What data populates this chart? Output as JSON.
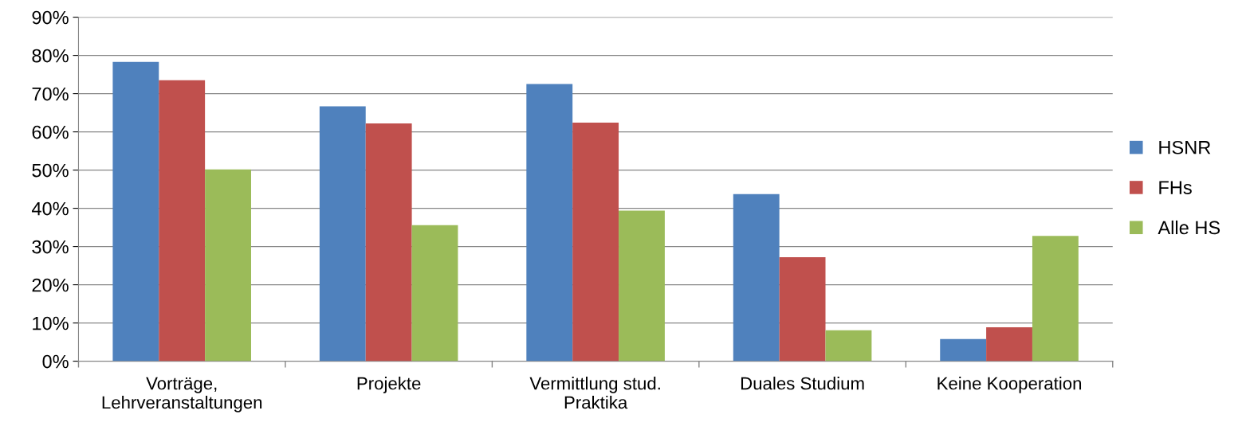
{
  "chart_data": {
    "type": "bar",
    "categories": [
      "Vorträge,\nLehrveranstaltungen",
      "Projekte",
      "Vermittlung stud.\nPraktika",
      "Duales Studium",
      "Keine Kooperation"
    ],
    "series": [
      {
        "name": "HSNR",
        "color": "#4f81bd",
        "values": [
          78.3,
          66.7,
          72.5,
          43.7,
          5.8
        ]
      },
      {
        "name": "FHs",
        "color": "#c0504d",
        "values": [
          73.5,
          62.2,
          62.4,
          27.2,
          8.9
        ]
      },
      {
        "name": "Alle HS",
        "color": "#9bbb59",
        "values": [
          50.2,
          35.6,
          39.4,
          8.1,
          32.8
        ]
      }
    ],
    "ylim": [
      0,
      90
    ],
    "yticks": [
      {
        "value": 0,
        "label": "0%"
      },
      {
        "value": 10,
        "label": "10%"
      },
      {
        "value": 20,
        "label": "20%"
      },
      {
        "value": 30,
        "label": "30%"
      },
      {
        "value": 40,
        "label": "40%"
      },
      {
        "value": 50,
        "label": "50%"
      },
      {
        "value": 60,
        "label": "60%"
      },
      {
        "value": 70,
        "label": "70%"
      },
      {
        "value": 80,
        "label": "80%"
      },
      {
        "value": 90,
        "label": "90%"
      }
    ],
    "grid": "y",
    "legend": "right"
  }
}
